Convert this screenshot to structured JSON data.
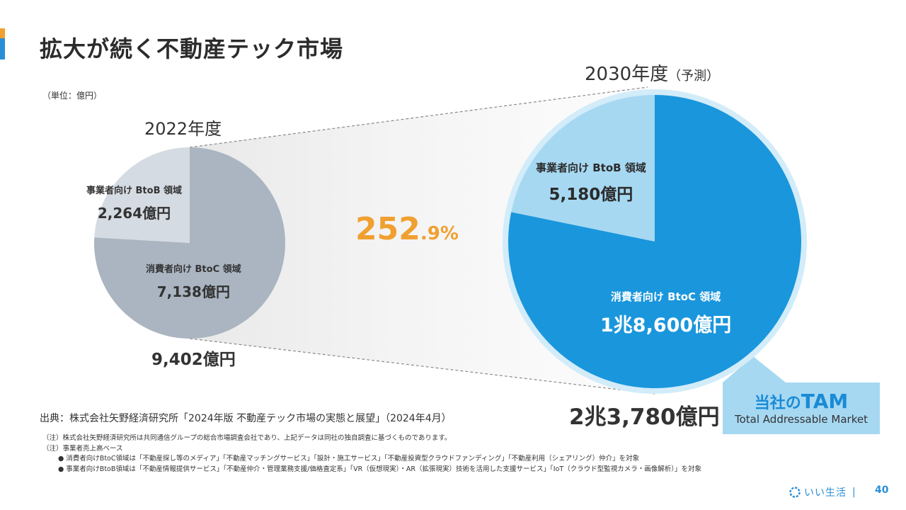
{
  "page": {
    "title": "拡大が続く不動産テック市場",
    "unit": "（単位：億円）",
    "page_number": "40"
  },
  "chart_data": {
    "type": "pie",
    "title": "拡大が続く不動産テック市場",
    "unit": "億円",
    "growth_label_main": "252",
    "growth_label_decimal": ".9%",
    "charts": [
      {
        "year_label": "2022年度",
        "total_label": "9,402億円",
        "total_value": 9402,
        "slices": [
          {
            "name": "事業者向け BtoB 領域",
            "value": 2264,
            "value_label": "2,264億円",
            "color": "#d5dbe2"
          },
          {
            "name": "消費者向け BtoC 領域",
            "value": 7138,
            "value_label": "7,138億円",
            "color": "#aab5c1"
          }
        ]
      },
      {
        "year_label": "2030年度",
        "year_note": "（予測）",
        "total_label": "2兆3,780億円",
        "total_value": 23780,
        "slices": [
          {
            "name": "事業者向け BtoB 領域",
            "value": 5180,
            "value_label": "5,180億円",
            "color": "#a6d8f2"
          },
          {
            "name": "消費者向け BtoC 領域",
            "value": 18600,
            "value_label": "1兆8,600億円",
            "color": "#1a96dc"
          }
        ]
      }
    ]
  },
  "tam": {
    "prefix": "当社の",
    "title": "TAM",
    "subtitle": "Total Addressable  Market"
  },
  "source": "出典：株式会社矢野経済研究所「2024年版 不動産テック市場の実態と展望」（2024年4月）",
  "notes": [
    "（注）株式会社矢野経済研究所は共同通信グループの総合市場調査会社であり、上記データは同社の独自調査に基づくものであります。",
    "（注）事業者売上高ベース"
  ],
  "note_bullets": [
    "● 消費者向けBtoC領域は「不動産探し等のメディア」「不動産マッチングサービス」「設計・施工サービス」「不動産投資型クラウドファンディング」「不動産利用（シェアリング）仲介」を対象",
    "● 事業者向けBtoB領域は「不動産情報提供サービス」「不動産仲介・管理業務支援/価格査定系」「VR（仮想現実）・AR（拡張現実）技術を活用した支援サービス」「IoT（クラウド型監視カメラ・画像解析）」を対象"
  ],
  "footer": {
    "logo_text": "いい生活",
    "separator": "|"
  },
  "colors": {
    "accent_orange": "#f0a030",
    "accent_blue": "#2a8fd6",
    "btoc_2030": "#1a96dc",
    "btob_2030": "#a6d8f2"
  }
}
